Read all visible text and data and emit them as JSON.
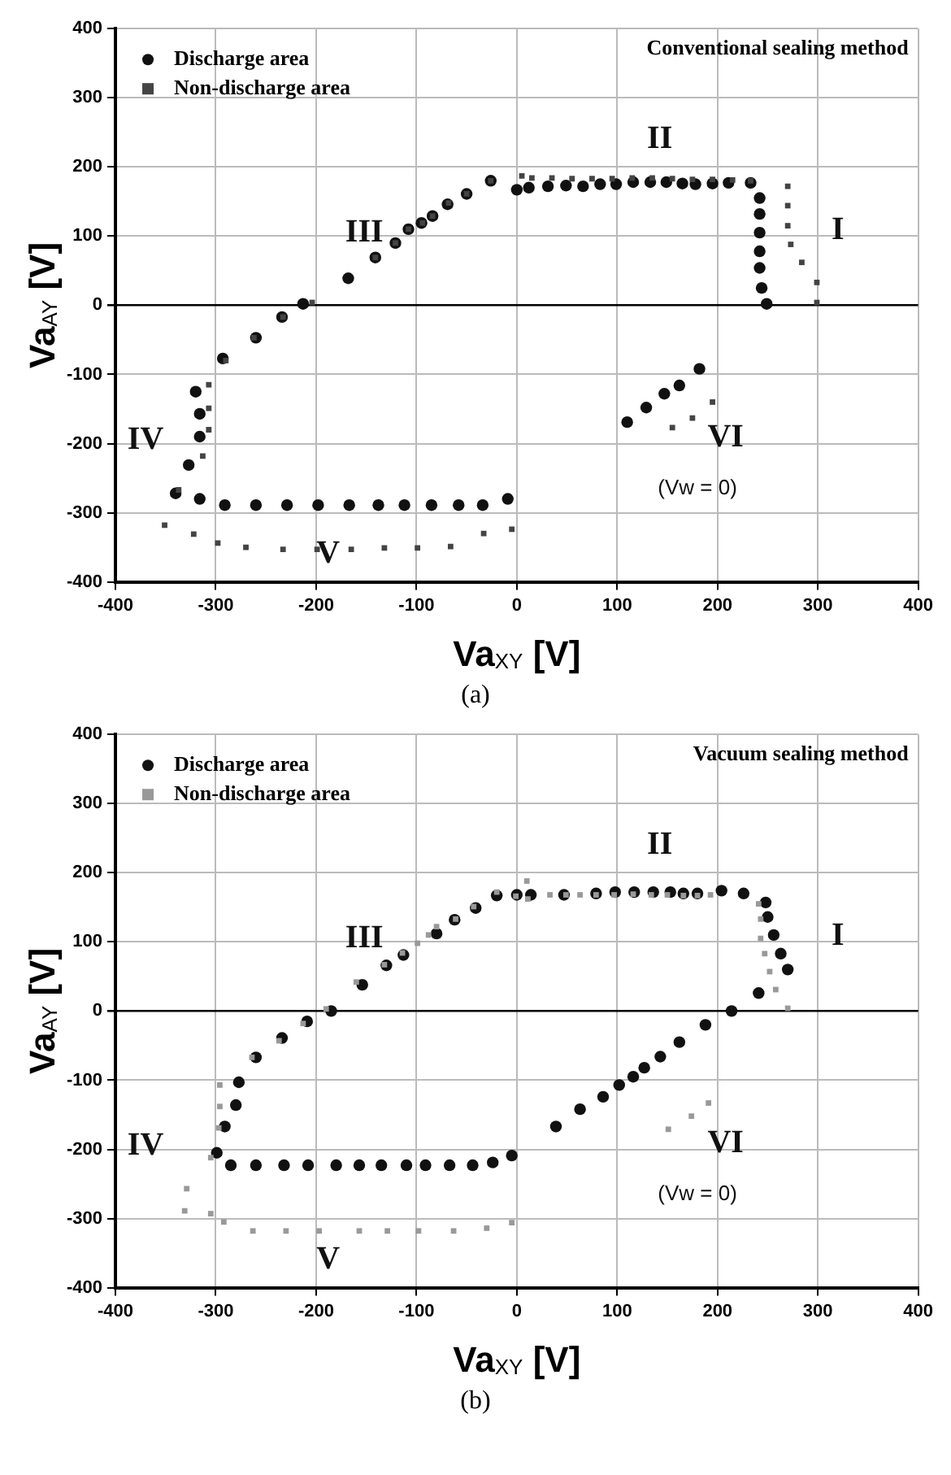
{
  "chart_data": [
    {
      "type": "scatter",
      "title": "Conventional sealing method",
      "xlabel": "Va$_{XY}$ [V]",
      "ylabel": "Va$_{AY}$ [V]",
      "xlim": [
        -400,
        400
      ],
      "ylim": [
        -400,
        400
      ],
      "xticks": [
        -400,
        -300,
        -200,
        -100,
        0,
        100,
        200,
        300,
        400
      ],
      "yticks": [
        -400,
        -300,
        -200,
        -100,
        0,
        100,
        200,
        300,
        400
      ],
      "grid": true,
      "legend": "top left",
      "annotations": [
        "I",
        "II",
        "III",
        "IV",
        "V",
        "VI",
        "(Vw = 0)",
        "(a)"
      ],
      "series": [
        {
          "name": "Discharge area",
          "color": "#111111",
          "marker": "circle",
          "x": [
            -320,
            -316,
            -316,
            -327,
            -340,
            -316,
            -291,
            -260,
            -229,
            -198,
            -167,
            -138,
            -112,
            -85,
            -58,
            -34,
            -9,
            -293,
            -260,
            -234,
            -213,
            -168,
            -141,
            -121,
            -108,
            -95,
            -84,
            -69,
            -50,
            -26,
            -3,
            0,
            12,
            31,
            49,
            66,
            83,
            99,
            116,
            133,
            149,
            165,
            178,
            195,
            211,
            233,
            242,
            242,
            242,
            242,
            242,
            244,
            249,
            110,
            129,
            147,
            162,
            182
          ],
          "values": [
            -125,
            -157,
            -190,
            -231,
            -272,
            -280,
            -289,
            -289,
            -289,
            -289,
            -289,
            -289,
            -289,
            -289,
            -289,
            -289,
            -280,
            -77,
            -47,
            -17,
            2,
            39,
            69,
            90,
            110,
            119,
            129,
            146,
            161,
            180,
            null,
            167,
            170,
            172,
            173,
            172,
            175,
            175,
            178,
            178,
            178,
            176,
            175,
            176,
            177,
            177,
            155,
            132,
            105,
            78,
            54,
            25,
            2,
            -169,
            -148,
            -128,
            -116,
            -92
          ]
        },
        {
          "name": "Non-discharge area",
          "color": "#444444",
          "marker": "square",
          "x": [
            -307,
            -307,
            -307,
            -313,
            -337,
            -351,
            -322,
            -298,
            -270,
            -233,
            -199,
            -165,
            -132,
            -99,
            -66,
            -33,
            -5,
            -290,
            -262,
            -233,
            -204,
            -141,
            -121,
            -108,
            -94,
            -84,
            -68,
            -50,
            -26,
            5,
            15,
            35,
            55,
            75,
            95,
            115,
            135,
            155,
            175,
            195,
            215,
            233,
            270,
            270,
            270,
            273,
            284,
            299,
            299,
            155,
            175,
            195
          ],
          "values": [
            -115,
            -149,
            -180,
            -218,
            -267,
            -318,
            -331,
            -344,
            -350,
            -353,
            -353,
            -353,
            -351,
            -351,
            -349,
            -330,
            -324,
            -80,
            -47,
            -17,
            4,
            69,
            90,
            110,
            119,
            129,
            148,
            161,
            180,
            187,
            184,
            184,
            183,
            183,
            183,
            184,
            184,
            183,
            182,
            182,
            181,
            180,
            172,
            144,
            115,
            88,
            62,
            33,
            4,
            -177,
            -163,
            -140
          ]
        }
      ]
    },
    {
      "type": "scatter",
      "title": "Vacuum sealing method",
      "xlabel": "Va$_{XY}$ [V]",
      "ylabel": "Va$_{AY}$ [V]",
      "xlim": [
        -400,
        400
      ],
      "ylim": [
        -400,
        400
      ],
      "xticks": [
        -400,
        -300,
        -200,
        -100,
        0,
        100,
        200,
        300,
        400
      ],
      "yticks": [
        -400,
        -300,
        -200,
        -100,
        0,
        100,
        200,
        300,
        400
      ],
      "grid": true,
      "legend": "top left",
      "annotations": [
        "I",
        "II",
        "III",
        "IV",
        "V",
        "VI",
        "(Vw = 0)",
        "(b)"
      ],
      "series": [
        {
          "name": "Discharge area",
          "color": "#111111",
          "marker": "circle",
          "x": [
            -277,
            -280,
            -291,
            -299,
            -285,
            -260,
            -232,
            -208,
            -180,
            -157,
            -135,
            -110,
            -91,
            -67,
            -44,
            -24,
            -5,
            -260,
            -234,
            -209,
            -185,
            -154,
            -130,
            -113,
            -80,
            -62,
            -41,
            -20,
            0,
            14,
            47,
            79,
            98,
            117,
            136,
            153,
            166,
            180,
            204,
            226,
            248,
            250,
            256,
            263,
            270,
            241,
            214,
            188,
            162,
            143,
            127,
            116,
            102,
            86,
            63,
            39
          ],
          "values": [
            -103,
            -136,
            -167,
            -205,
            -223,
            -223,
            -223,
            -223,
            -223,
            -223,
            -223,
            -223,
            -223,
            -223,
            -223,
            -219,
            -209,
            -67,
            -39,
            -15,
            0,
            38,
            66,
            81,
            112,
            132,
            149,
            167,
            168,
            168,
            168,
            170,
            172,
            172,
            172,
            172,
            170,
            170,
            174,
            170,
            157,
            136,
            110,
            83,
            60,
            26,
            0,
            -20,
            -45,
            -66,
            -82,
            -95,
            -107,
            -124,
            -142,
            -167
          ]
        },
        {
          "name": "Non-discharge area",
          "color": "#999999",
          "marker": "square",
          "x": [
            -296,
            -296,
            -297,
            -305,
            -329,
            -331,
            -305,
            -292,
            -263,
            -230,
            -197,
            -157,
            -129,
            -98,
            -63,
            -30,
            -5,
            -264,
            -237,
            -213,
            -190,
            -160,
            -132,
            -114,
            -99,
            -88,
            -80,
            -61,
            -43,
            -20,
            -1,
            10,
            11,
            33,
            49,
            63,
            79,
            97,
            116,
            134,
            150,
            166,
            180,
            193,
            241,
            243,
            243,
            247,
            252,
            258,
            270,
            151,
            174,
            191
          ],
          "values": [
            -107,
            -138,
            -169,
            -212,
            -257,
            -289,
            -293,
            -305,
            -318,
            -318,
            -318,
            -318,
            -318,
            -318,
            -318,
            -314,
            -306,
            -67,
            -43,
            -18,
            3,
            42,
            67,
            84,
            98,
            110,
            122,
            133,
            151,
            172,
            166,
            188,
            162,
            168,
            168,
            168,
            168,
            168,
            169,
            168,
            168,
            167,
            167,
            168,
            155,
            133,
            105,
            83,
            57,
            31,
            4,
            -171,
            -152,
            -133
          ]
        }
      ]
    }
  ]
}
